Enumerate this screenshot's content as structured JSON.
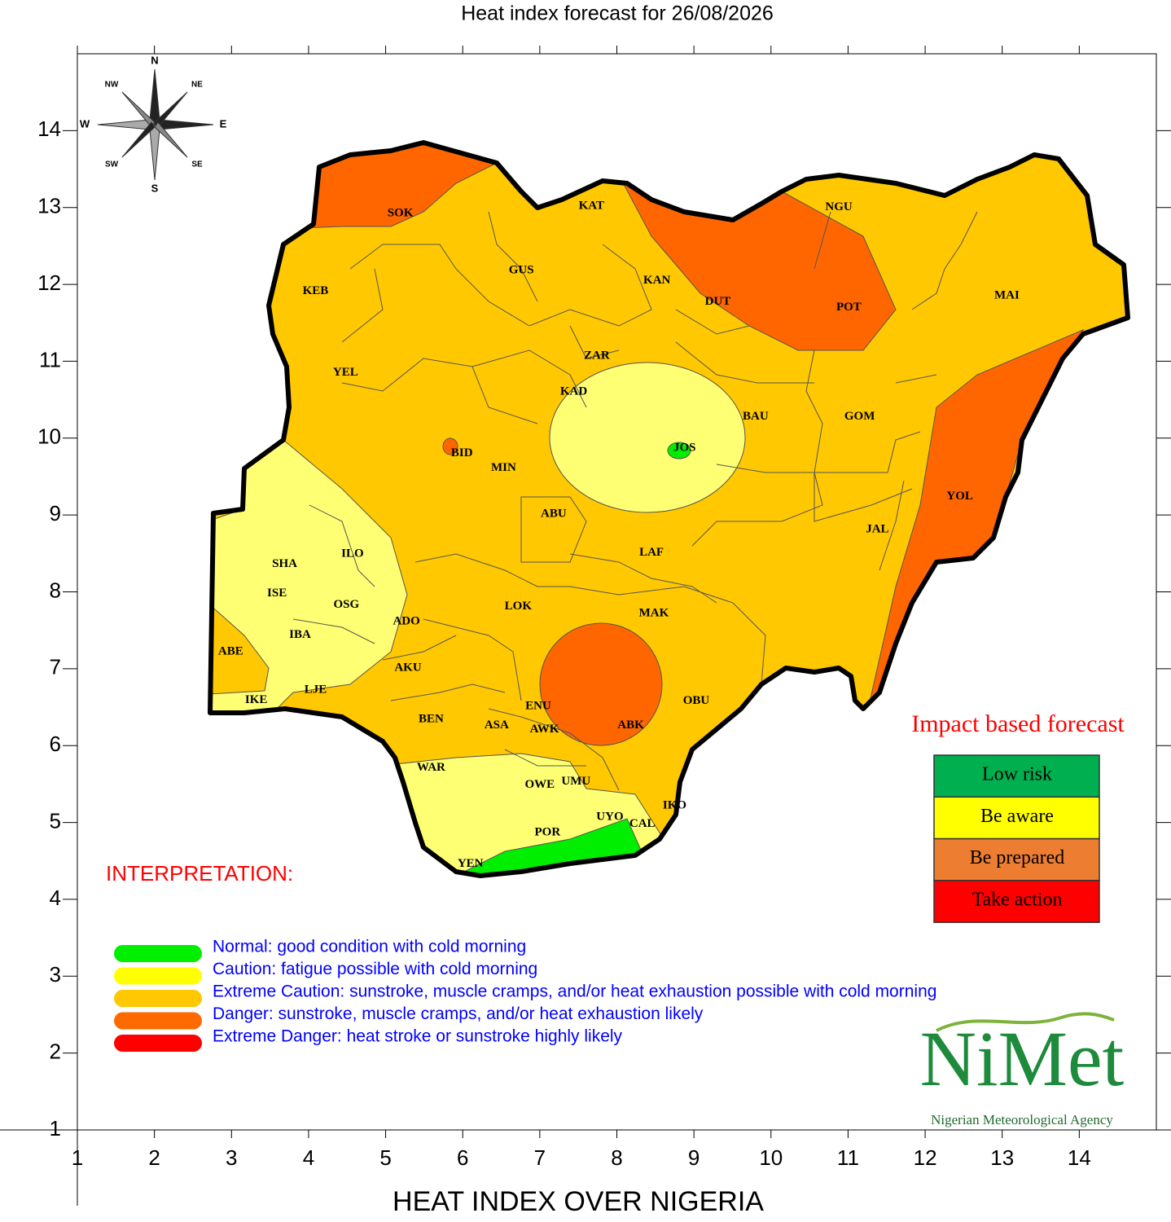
{
  "map": {
    "title": "Heat index forecast for 26/08/2026",
    "xlabel": "HEAT INDEX OVER NIGERIA",
    "xlim": [
      1,
      15
    ],
    "ylim": [
      1,
      15
    ],
    "xticks": [
      1,
      2,
      3,
      4,
      5,
      6,
      7,
      8,
      9,
      10,
      11,
      12,
      13,
      14
    ],
    "yticks": [
      1,
      2,
      3,
      4,
      5,
      6,
      7,
      8,
      9,
      10,
      11,
      12,
      13,
      14
    ],
    "compass": [
      "N",
      "NE",
      "E",
      "SE",
      "S",
      "SW",
      "W",
      "NW"
    ],
    "states": [
      {
        "label": "SOK",
        "lon": 5.19,
        "lat": 12.92
      },
      {
        "label": "KAT",
        "lon": 7.67,
        "lat": 13.02
      },
      {
        "label": "NGU",
        "lon": 10.88,
        "lat": 13.0
      },
      {
        "label": "KEB",
        "lon": 4.09,
        "lat": 11.91
      },
      {
        "label": "GUS",
        "lon": 6.76,
        "lat": 12.18
      },
      {
        "label": "KAN",
        "lon": 8.52,
        "lat": 12.05
      },
      {
        "label": "DUT",
        "lon": 9.31,
        "lat": 11.77
      },
      {
        "label": "POT",
        "lon": 11.01,
        "lat": 11.7
      },
      {
        "label": "MAI",
        "lon": 13.06,
        "lat": 11.85
      },
      {
        "label": "YEL",
        "lon": 4.48,
        "lat": 10.85
      },
      {
        "label": "ZAR",
        "lon": 7.74,
        "lat": 11.07
      },
      {
        "label": "KAD",
        "lon": 7.44,
        "lat": 10.6
      },
      {
        "label": "BAU",
        "lon": 9.8,
        "lat": 10.28
      },
      {
        "label": "GOM",
        "lon": 11.15,
        "lat": 10.28
      },
      {
        "label": "BID",
        "lon": 5.99,
        "lat": 9.8
      },
      {
        "label": "JOS",
        "lon": 8.88,
        "lat": 9.87
      },
      {
        "label": "MIN",
        "lon": 6.53,
        "lat": 9.61
      },
      {
        "label": "YOL",
        "lon": 12.45,
        "lat": 9.24
      },
      {
        "label": "ABU",
        "lon": 7.18,
        "lat": 9.01
      },
      {
        "label": "JAL",
        "lon": 11.38,
        "lat": 8.81
      },
      {
        "label": "SHA",
        "lon": 3.69,
        "lat": 8.36
      },
      {
        "label": "ILO",
        "lon": 4.57,
        "lat": 8.49
      },
      {
        "label": "LAF",
        "lon": 8.45,
        "lat": 8.51
      },
      {
        "label": "ISE",
        "lon": 3.59,
        "lat": 7.98
      },
      {
        "label": "OSG",
        "lon": 4.49,
        "lat": 7.83
      },
      {
        "label": "LOK",
        "lon": 6.72,
        "lat": 7.81
      },
      {
        "label": "MAK",
        "lon": 8.48,
        "lat": 7.72
      },
      {
        "label": "ADO",
        "lon": 5.27,
        "lat": 7.61
      },
      {
        "label": "IBA",
        "lon": 3.89,
        "lat": 7.44
      },
      {
        "label": "ABE",
        "lon": 2.99,
        "lat": 7.22
      },
      {
        "label": "AKU",
        "lon": 5.29,
        "lat": 7.01
      },
      {
        "label": "LJE",
        "lon": 4.09,
        "lat": 6.72
      },
      {
        "label": "IKE",
        "lon": 3.32,
        "lat": 6.59
      },
      {
        "label": "ENU",
        "lon": 6.98,
        "lat": 6.51
      },
      {
        "label": "OBU",
        "lon": 9.03,
        "lat": 6.58
      },
      {
        "label": "BEN",
        "lon": 5.59,
        "lat": 6.34
      },
      {
        "label": "ASA",
        "lon": 6.44,
        "lat": 6.26
      },
      {
        "label": "AWK",
        "lon": 7.06,
        "lat": 6.21
      },
      {
        "label": "ABK",
        "lon": 8.18,
        "lat": 6.26
      },
      {
        "label": "WAR",
        "lon": 5.59,
        "lat": 5.71
      },
      {
        "label": "OWE",
        "lon": 7.0,
        "lat": 5.49
      },
      {
        "label": "UMU",
        "lon": 7.47,
        "lat": 5.53
      },
      {
        "label": "IKO",
        "lon": 8.75,
        "lat": 5.22
      },
      {
        "label": "UYO",
        "lon": 7.91,
        "lat": 5.07
      },
      {
        "label": "CAL",
        "lon": 8.33,
        "lat": 4.98
      },
      {
        "label": "POR",
        "lon": 7.1,
        "lat": 4.87
      },
      {
        "label": "YEN",
        "lon": 6.1,
        "lat": 4.46
      }
    ]
  },
  "interpretation": {
    "title": "INTERPRETATION:",
    "items": [
      {
        "text": "Normal: good condition with cold morning",
        "color": "#00ee00"
      },
      {
        "text": "Caution: fatigue possible  with cold morning",
        "color": "#ffff00"
      },
      {
        "text": "Extreme Caution: sunstroke, muscle cramps, and/or heat exhaustion possible  with cold morning",
        "color": "#ffc800"
      },
      {
        "text": "Danger: sunstroke, muscle cramps, and/or heat exhaustion likely",
        "color": "#ff6a00"
      },
      {
        "text": "Extreme Danger: heat stroke or sunstroke highly likely",
        "color": "#ff0000"
      }
    ]
  },
  "impact_forecast": {
    "title": "Impact based forecast",
    "levels": [
      {
        "label": "Low risk",
        "color": "#00b050"
      },
      {
        "label": "Be aware",
        "color": "#ffff00"
      },
      {
        "label": "Be prepared",
        "color": "#ed7d31"
      },
      {
        "label": "Take action",
        "color": "#ff0000"
      }
    ]
  },
  "logo": {
    "name": "NiMet",
    "subtitle": "Nigerian Meteorological Agency"
  }
}
